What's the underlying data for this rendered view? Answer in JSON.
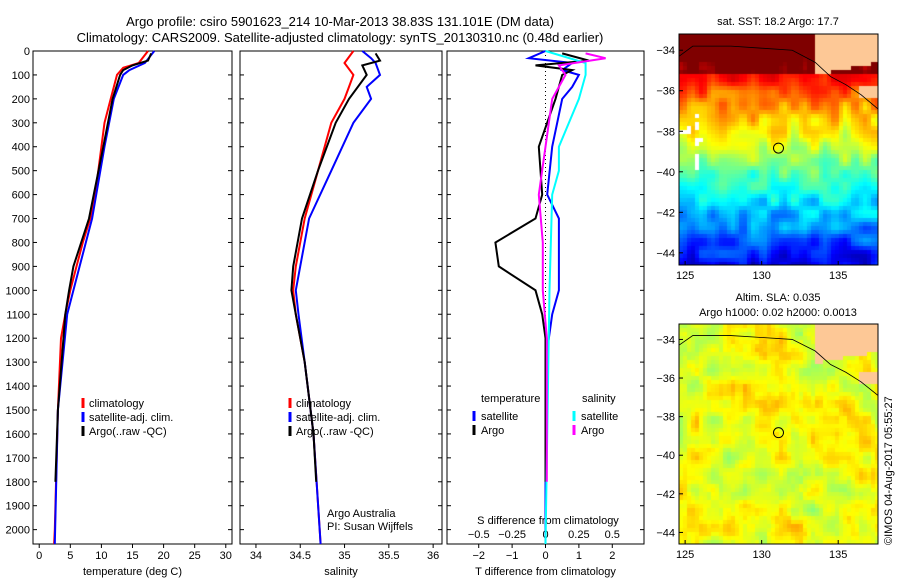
{
  "title_line1": "Argo profile: csiro 5901623_214 10-Mar-2013 38.83S 131.101E (DM data)",
  "title_line2": "Climatology: CARS2009. Satellite-adjusted climatology: synTS_20130310.nc (0.48d earlier)",
  "credit": "Argo Australia",
  "pi": "PI: Susan Wijffels",
  "stamp": "©IMOS 04-Aug-2017 05:55:27",
  "colors": {
    "clim": "#ff0000",
    "sat": "#0000ff",
    "argo": "#000000",
    "sal_sat": "#00ffff",
    "sal_argo": "#ff00ff",
    "land": "#fdc896"
  },
  "chart_data": [
    {
      "type": "line",
      "name": "temperature",
      "xlabel": "temperature (deg C)",
      "xlim": [
        -1,
        31
      ],
      "xticks": [
        0,
        5,
        10,
        15,
        20,
        25,
        30
      ],
      "ylim": [
        0,
        2060
      ],
      "yticks": [
        0,
        100,
        200,
        300,
        400,
        500,
        600,
        700,
        800,
        900,
        1000,
        1100,
        1200,
        1300,
        1400,
        1500,
        1600,
        1700,
        1800,
        1900,
        2000
      ],
      "legend": [
        "climatology",
        "satellite-adj. clim.",
        "Argo(..raw -QC)"
      ],
      "series": [
        {
          "name": "climatology",
          "color": "#ff0000",
          "depth": [
            0,
            50,
            70,
            100,
            200,
            300,
            400,
            600,
            700,
            800,
            900,
            1000,
            1100,
            1200,
            1500,
            2000,
            2060
          ],
          "values": [
            17.5,
            16,
            13.5,
            12.5,
            11.5,
            10.5,
            10,
            9,
            8.2,
            7,
            6,
            5,
            4.2,
            3.5,
            3,
            2.5,
            2.4
          ]
        },
        {
          "name": "satellite-adj. clim.",
          "color": "#0000ff",
          "depth": [
            0,
            50,
            80,
            100,
            200,
            400,
            700,
            900,
            1100,
            1500,
            2060
          ],
          "values": [
            18.5,
            17,
            14.5,
            13.5,
            12,
            10.5,
            8.5,
            6.5,
            4.5,
            3,
            2.5
          ]
        },
        {
          "name": "Argo(..raw -QC)",
          "color": "#000000",
          "depth": [
            10,
            40,
            60,
            80,
            100,
            200,
            400,
            700,
            900,
            1000,
            1100,
            1500,
            1800
          ],
          "values": [
            18,
            17.5,
            15,
            13.5,
            13,
            11.8,
            10.3,
            8,
            5.5,
            4.8,
            4.2,
            3,
            2.6
          ]
        }
      ]
    },
    {
      "type": "line",
      "name": "salinity",
      "xlabel": "salinity",
      "xlim": [
        33.82,
        36.1
      ],
      "xticks": [
        34,
        34.5,
        35,
        35.5,
        36
      ],
      "ylim": [
        0,
        2060
      ],
      "legend": [
        "climatology",
        "satellite-adj. clim.",
        "Argo(..raw -QC)"
      ],
      "series": [
        {
          "name": "climatology",
          "color": "#ff0000",
          "depth": [
            0,
            50,
            100,
            150,
            200,
            300,
            500,
            700,
            900,
            1000,
            1100,
            1300,
            1600,
            2000,
            2060
          ],
          "values": [
            35.1,
            35.0,
            35.1,
            35.05,
            35.0,
            34.85,
            34.7,
            34.55,
            34.45,
            34.42,
            34.45,
            34.55,
            34.65,
            34.72,
            34.73
          ]
        },
        {
          "name": "satellite-adj. clim.",
          "color": "#0000ff",
          "depth": [
            0,
            30,
            50,
            100,
            150,
            200,
            300,
            500,
            700,
            900,
            1000,
            1100,
            1300,
            1600,
            2060
          ],
          "values": [
            35.2,
            35.3,
            35.35,
            35.4,
            35.25,
            35.3,
            35.1,
            34.85,
            34.6,
            34.5,
            34.45,
            34.48,
            34.55,
            34.65,
            34.73
          ]
        },
        {
          "name": "Argo(..raw -QC)",
          "color": "#000000",
          "depth": [
            10,
            40,
            60,
            100,
            200,
            300,
            500,
            700,
            900,
            1000,
            1100,
            1300,
            1600,
            1800
          ],
          "values": [
            35.35,
            35.4,
            35.2,
            35.25,
            35.05,
            34.9,
            34.7,
            34.52,
            34.42,
            34.4,
            34.45,
            34.55,
            34.65,
            34.68
          ]
        }
      ]
    },
    {
      "type": "line",
      "name": "differences",
      "xlabel": "T difference from climatology",
      "xlim": [
        -2.95,
        2.95
      ],
      "xticks": [
        -2,
        -1,
        0,
        1,
        2
      ],
      "x2label": "S difference from climatology",
      "x2ticks": [
        -0.5,
        -0.25,
        0,
        0.25,
        0.5
      ],
      "ylim": [
        0,
        2060
      ],
      "legend_headers": [
        "temperature",
        "salinity"
      ],
      "legend": [
        "satellite",
        "Argo",
        "satellite",
        "Argo"
      ],
      "series": [
        {
          "name": "T satellite",
          "color": "#0000ff",
          "axis": "T",
          "depth": [
            0,
            30,
            50,
            80,
            100,
            150,
            200,
            400,
            600,
            700,
            800,
            900,
            1000,
            1100,
            1300,
            2060
          ],
          "values": [
            0,
            -0.5,
            0.8,
            0.5,
            1,
            0.8,
            0.5,
            0.2,
            0.05,
            0.4,
            0.4,
            0.4,
            0.4,
            0.2,
            0,
            0
          ]
        },
        {
          "name": "T Argo",
          "color": "#000000",
          "axis": "T",
          "depth": [
            10,
            40,
            60,
            80,
            100,
            200,
            400,
            600,
            700,
            800,
            900,
            1000,
            1100,
            1200,
            1800
          ],
          "values": [
            0.5,
            1.3,
            -0.3,
            0.8,
            0.5,
            0.3,
            -0.2,
            -0.1,
            -0.3,
            -1.5,
            -1.4,
            -0.3,
            -0.1,
            0,
            0
          ]
        },
        {
          "name": "S satellite",
          "color": "#00ffff",
          "axis": "S",
          "depth": [
            0,
            50,
            100,
            200,
            400,
            500,
            600,
            1000,
            2060
          ],
          "values": [
            0,
            0.3,
            0.3,
            0.25,
            0.1,
            0.1,
            0.05,
            0.03,
            0
          ]
        },
        {
          "name": "S Argo",
          "color": "#ff00ff",
          "axis": "S",
          "depth": [
            10,
            30,
            60,
            100,
            200,
            400,
            600,
            800,
            1000,
            1200,
            1800
          ],
          "values": [
            0.3,
            0.45,
            0.1,
            0.15,
            0.05,
            0,
            -0.05,
            -0.02,
            -0.02,
            0.01,
            0.01
          ]
        }
      ]
    },
    {
      "type": "heatmap",
      "name": "sst-map",
      "title": "sat. SST: 18.2 Argo: 17.7",
      "xlim": [
        124.6,
        137.6
      ],
      "ylim": [
        -44.6,
        -33.2
      ],
      "xticks": [
        125,
        130,
        135
      ],
      "yticks": [
        -34,
        -36,
        -38,
        -40,
        -42,
        -44
      ],
      "argo_position": [
        131.1,
        -38.83
      ]
    },
    {
      "type": "heatmap",
      "name": "sla-map",
      "title1": "Altim. SLA: 0.035",
      "title2": "Argo h1000: 0.02 h2000: 0.0013",
      "xlim": [
        124.6,
        137.6
      ],
      "ylim": [
        -44.6,
        -33.2
      ],
      "xticks": [
        125,
        130,
        135
      ],
      "yticks": [
        -34,
        -36,
        -38,
        -40,
        -42,
        -44
      ],
      "argo_position": [
        131.1,
        -38.83
      ]
    }
  ]
}
